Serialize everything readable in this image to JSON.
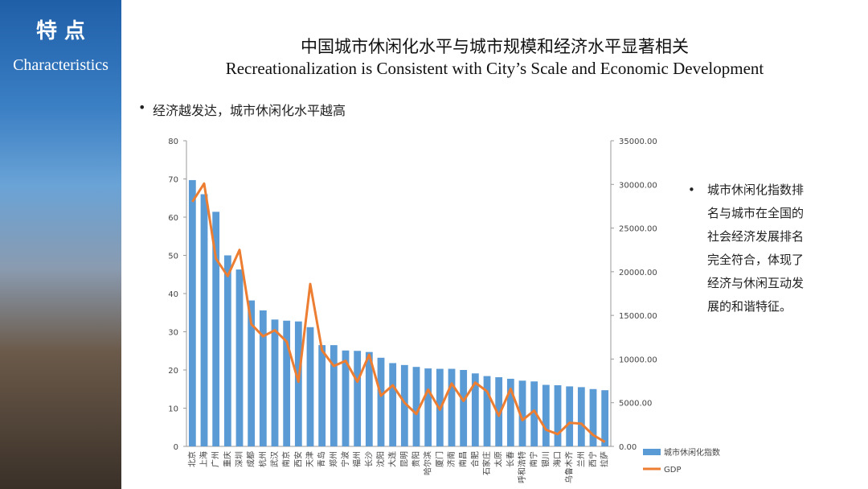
{
  "slide": {
    "sidebar_title": "特 点",
    "sidebar_subtitle": "Characteristics",
    "title": "中国城市休闲化水平与城市规模和经济水平显著相关",
    "subtitle": "Recreationalization is Consistent with City’s Scale and Economic Development",
    "bullet": "经济越发达，城市休闲化水平越高",
    "note_lines": [
      "城市休闲化指数排",
      "名与城市在全国的",
      "社会经济发展排名",
      "完全符合，体现了",
      "经济与休闲互动发",
      "展的和谐特征。"
    ]
  },
  "chart_data": {
    "type": "bar",
    "categories": [
      "北京",
      "上海",
      "广州",
      "重庆",
      "深圳",
      "成都",
      "杭州",
      "武汉",
      "南京",
      "西安",
      "天津",
      "青岛",
      "郑州",
      "宁波",
      "福州",
      "长沙",
      "沈阳",
      "大连",
      "昆明",
      "贵阳",
      "哈尔滨",
      "厦门",
      "济南",
      "南昌",
      "合肥",
      "石家庄",
      "太原",
      "长春",
      "呼和浩特",
      "南宁",
      "银川",
      "海口",
      "乌鲁木齐",
      "兰州",
      "西宁",
      "拉萨"
    ],
    "series": [
      {
        "name": "城市休闲化指数",
        "color": "#5b9bd5",
        "type": "bar",
        "values": [
          69.7,
          66,
          61.4,
          50,
          46.3,
          38.2,
          35.6,
          33.2,
          32.9,
          32.7,
          31.2,
          26.5,
          26.5,
          25.1,
          25,
          24.7,
          23.2,
          21.8,
          21.3,
          20.8,
          20.4,
          20.3,
          20.3,
          20,
          19.1,
          18.4,
          18.1,
          17.7,
          17.2,
          17,
          16.1,
          16,
          15.7,
          15.5,
          15,
          14.7
        ]
      },
      {
        "name": "GDP",
        "color": "#ed7d31",
        "type": "line",
        "axis": "y2",
        "values": [
          28000,
          30100,
          21500,
          19500,
          22500,
          14000,
          12600,
          13300,
          12000,
          7400,
          18600,
          11000,
          9200,
          9800,
          7400,
          10500,
          5800,
          7000,
          5000,
          3700,
          6500,
          4200,
          7200,
          5200,
          7300,
          6300,
          3500,
          6600,
          3000,
          4100,
          1900,
          1400,
          2700,
          2600,
          1300,
          500
        ]
      }
    ],
    "ylim": [
      0,
      80
    ],
    "yticks": [
      0,
      10,
      20,
      30,
      40,
      50,
      60,
      70,
      80
    ],
    "y2lim": [
      0,
      35000
    ],
    "y2ticks": [
      {
        "value": 0,
        "label": "0.00"
      },
      {
        "value": 5000,
        "label": "5000.00"
      },
      {
        "value": 10000,
        "label": "10000.00"
      },
      {
        "value": 15000,
        "label": "15000.00"
      },
      {
        "value": 20000,
        "label": "20000.00"
      },
      {
        "value": 25000,
        "label": "25000.00"
      },
      {
        "value": 30000,
        "label": "30000.00"
      },
      {
        "value": 35000,
        "label": "35000.00"
      }
    ],
    "legend": "bottom-right"
  }
}
